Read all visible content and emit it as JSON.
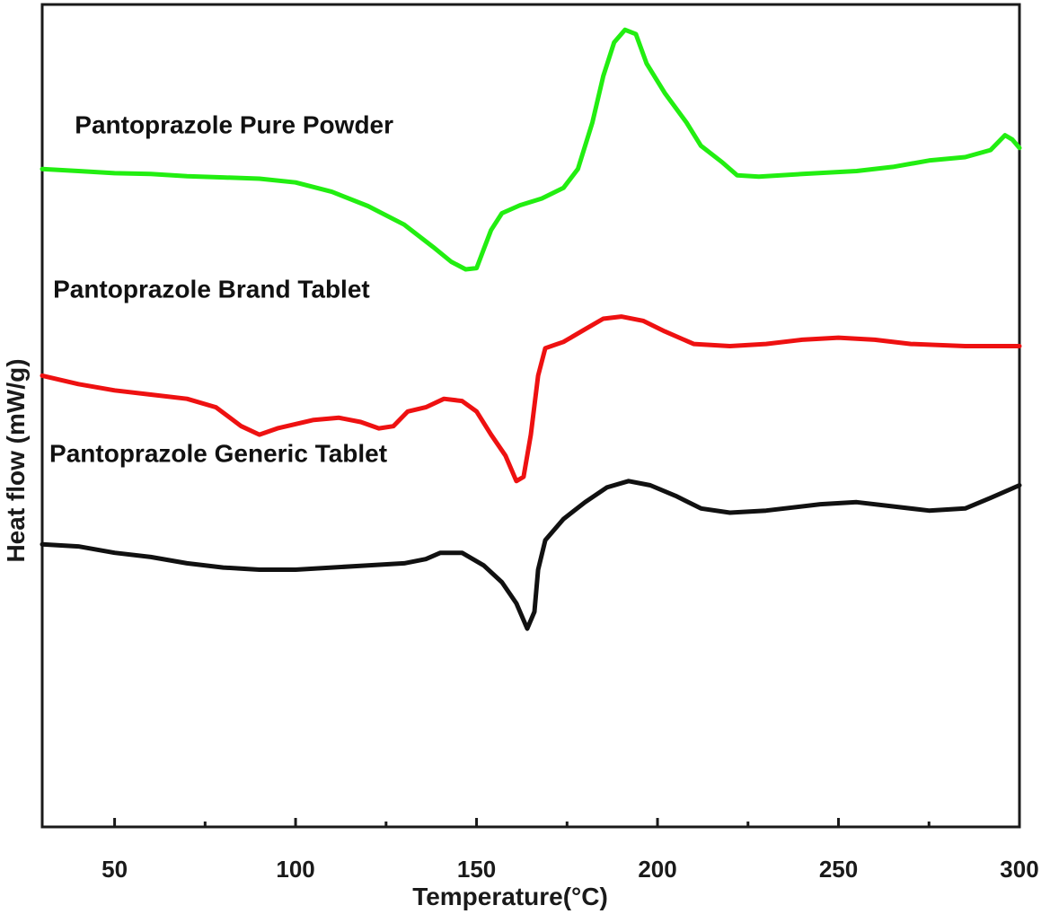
{
  "chart_data": {
    "type": "line",
    "xlabel": "Temperature(°C)",
    "ylabel": "Heat flow (mW/g)",
    "xlim": [
      30,
      300
    ],
    "x_ticks": [
      50,
      100,
      150,
      200,
      250,
      300
    ],
    "y_ticks_shown": false,
    "grid": false,
    "legend": "none",
    "series": [
      {
        "name": "Pantoprazole Pure Powder",
        "color": "#22ee11",
        "points": [
          [
            30,
            0.61
          ],
          [
            40,
            0.605
          ],
          [
            50,
            0.6
          ],
          [
            60,
            0.598
          ],
          [
            70,
            0.593
          ],
          [
            80,
            0.59
          ],
          [
            90,
            0.587
          ],
          [
            100,
            0.578
          ],
          [
            110,
            0.556
          ],
          [
            120,
            0.522
          ],
          [
            130,
            0.478
          ],
          [
            138,
            0.425
          ],
          [
            143,
            0.39
          ],
          [
            147,
            0.372
          ],
          [
            150,
            0.375
          ],
          [
            152,
            0.42
          ],
          [
            154,
            0.465
          ],
          [
            157,
            0.505
          ],
          [
            162,
            0.524
          ],
          [
            168,
            0.54
          ],
          [
            174,
            0.565
          ],
          [
            178,
            0.61
          ],
          [
            182,
            0.72
          ],
          [
            185,
            0.83
          ],
          [
            188,
            0.91
          ],
          [
            191,
            0.94
          ],
          [
            194,
            0.93
          ],
          [
            197,
            0.86
          ],
          [
            202,
            0.79
          ],
          [
            208,
            0.72
          ],
          [
            212,
            0.665
          ],
          [
            218,
            0.625
          ],
          [
            222,
            0.595
          ],
          [
            228,
            0.592
          ],
          [
            240,
            0.598
          ],
          [
            255,
            0.605
          ],
          [
            265,
            0.615
          ],
          [
            275,
            0.63
          ],
          [
            285,
            0.638
          ],
          [
            292,
            0.655
          ],
          [
            296,
            0.69
          ],
          [
            298,
            0.68
          ],
          [
            300,
            0.66
          ]
        ]
      },
      {
        "name": "Pantoprazole Brand Tablet",
        "color": "#ee1111",
        "points": [
          [
            30,
            0.12
          ],
          [
            40,
            0.1
          ],
          [
            50,
            0.085
          ],
          [
            60,
            0.075
          ],
          [
            70,
            0.065
          ],
          [
            78,
            0.045
          ],
          [
            85,
            0.0
          ],
          [
            90,
            -0.02
          ],
          [
            95,
            -0.005
          ],
          [
            105,
            0.015
          ],
          [
            112,
            0.02
          ],
          [
            118,
            0.01
          ],
          [
            123,
            -0.005
          ],
          [
            127,
            0.0
          ],
          [
            131,
            0.035
          ],
          [
            136,
            0.045
          ],
          [
            141,
            0.065
          ],
          [
            146,
            0.06
          ],
          [
            150,
            0.035
          ],
          [
            154,
            -0.02
          ],
          [
            158,
            -0.07
          ],
          [
            161,
            -0.13
          ],
          [
            163,
            -0.12
          ],
          [
            165,
            -0.02
          ],
          [
            167,
            0.12
          ],
          [
            169,
            0.185
          ],
          [
            174,
            0.2
          ],
          [
            180,
            0.23
          ],
          [
            185,
            0.255
          ],
          [
            190,
            0.26
          ],
          [
            196,
            0.25
          ],
          [
            202,
            0.225
          ],
          [
            210,
            0.195
          ],
          [
            220,
            0.19
          ],
          [
            230,
            0.195
          ],
          [
            240,
            0.205
          ],
          [
            250,
            0.21
          ],
          [
            260,
            0.205
          ],
          [
            270,
            0.195
          ],
          [
            285,
            0.19
          ],
          [
            300,
            0.19
          ]
        ]
      },
      {
        "name": "Pantoprazole Generic Tablet",
        "color": "#111111",
        "points": [
          [
            30,
            -0.28
          ],
          [
            40,
            -0.285
          ],
          [
            50,
            -0.3
          ],
          [
            60,
            -0.31
          ],
          [
            70,
            -0.325
          ],
          [
            80,
            -0.335
          ],
          [
            90,
            -0.34
          ],
          [
            100,
            -0.34
          ],
          [
            110,
            -0.335
          ],
          [
            120,
            -0.33
          ],
          [
            130,
            -0.325
          ],
          [
            136,
            -0.315
          ],
          [
            140,
            -0.3
          ],
          [
            146,
            -0.3
          ],
          [
            152,
            -0.33
          ],
          [
            157,
            -0.37
          ],
          [
            161,
            -0.42
          ],
          [
            164,
            -0.48
          ],
          [
            166,
            -0.44
          ],
          [
            167,
            -0.34
          ],
          [
            169,
            -0.27
          ],
          [
            174,
            -0.22
          ],
          [
            180,
            -0.18
          ],
          [
            186,
            -0.145
          ],
          [
            192,
            -0.13
          ],
          [
            198,
            -0.14
          ],
          [
            205,
            -0.165
          ],
          [
            212,
            -0.195
          ],
          [
            220,
            -0.205
          ],
          [
            230,
            -0.2
          ],
          [
            245,
            -0.185
          ],
          [
            255,
            -0.18
          ],
          [
            265,
            -0.19
          ],
          [
            275,
            -0.2
          ],
          [
            285,
            -0.195
          ],
          [
            292,
            -0.17
          ],
          [
            300,
            -0.14
          ]
        ]
      }
    ],
    "series_label_positions": {
      "Pantoprazole Pure Powder": [
        39,
        0.695
      ],
      "Pantoprazole Brand Tablet": [
        33,
        0.305
      ],
      "Pantoprazole Generic Tablet": [
        32,
        -0.085
      ]
    }
  }
}
